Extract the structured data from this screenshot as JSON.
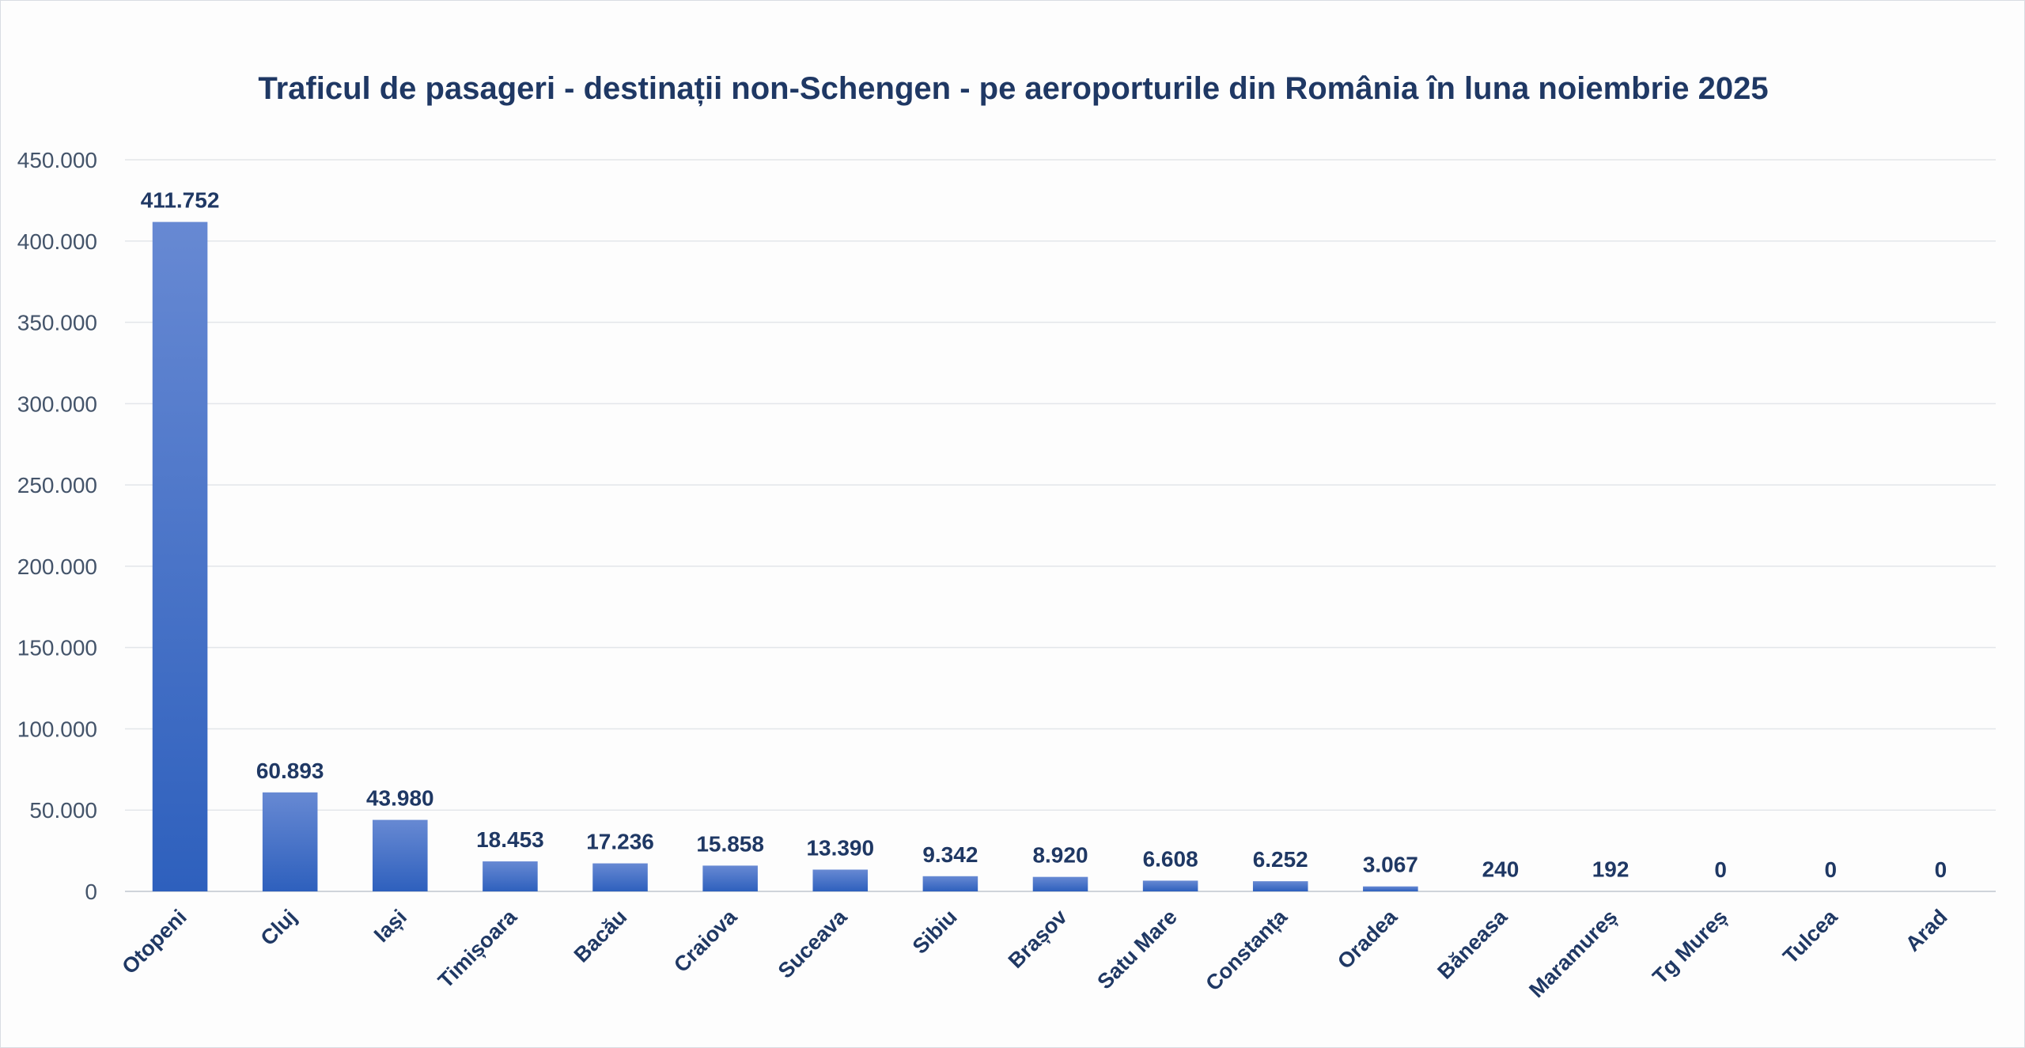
{
  "chart_data": {
    "type": "bar",
    "title": "Traficul de pasageri - destinații non-Schengen - pe aeroporturile din România în luna noiembrie 2025",
    "xlabel": "",
    "ylabel": "",
    "categories": [
      "Otopeni",
      "Cluj",
      "Iași",
      "Timișoara",
      "Bacău",
      "Craiova",
      "Suceava",
      "Sibiu",
      "Brașov",
      "Satu Mare",
      "Constanța",
      "Oradea",
      "Băneasa",
      "Maramureș",
      "Tg Mureș",
      "Tulcea",
      "Arad"
    ],
    "values": [
      411752,
      60893,
      43980,
      18453,
      17236,
      15858,
      13390,
      9342,
      8920,
      6608,
      6252,
      3067,
      240,
      192,
      0,
      0,
      0
    ],
    "data_labels": [
      "411.752",
      "60.893",
      "43.980",
      "18.453",
      "17.236",
      "15.858",
      "13.390",
      "9.342",
      "8.920",
      "6.608",
      "6.252",
      "3.067",
      "240",
      "192",
      "0",
      "0",
      "0"
    ],
    "ylim": [
      0,
      450000
    ],
    "y_ticks": [
      0,
      50000,
      100000,
      150000,
      200000,
      250000,
      300000,
      350000,
      400000,
      450000
    ],
    "y_tick_labels": [
      "0",
      "50.000",
      "100.000",
      "150.000",
      "200.000",
      "250.000",
      "300.000",
      "350.000",
      "400.000",
      "450.000"
    ],
    "grid": true,
    "legend": "none",
    "colors": {
      "bar_top": "#6789d3",
      "bar_bottom": "#2e60bd",
      "text": "#1f3864",
      "axis_text": "#44546a",
      "grid": "#e3e6ea"
    }
  }
}
